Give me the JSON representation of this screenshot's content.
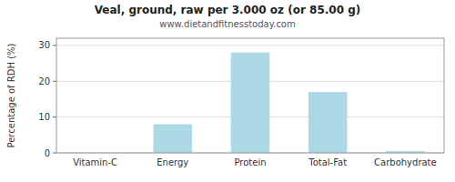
{
  "chart_data": {
    "type": "bar",
    "title": "Veal, ground, raw per 3.000 oz (or 85.00 g)",
    "subtitle": "www.dietandfitnesstoday.com",
    "categories": [
      "Vitamin-C",
      "Energy",
      "Protein",
      "Total-Fat",
      "Carbohydrate"
    ],
    "values": [
      0,
      8,
      28,
      17,
      0.5
    ],
    "color": "#add8e6",
    "ylabel": "Percentage of RDH (%)",
    "ylim": [
      0,
      32
    ],
    "yticks": [
      0,
      10,
      20,
      30
    ],
    "grid": true
  }
}
